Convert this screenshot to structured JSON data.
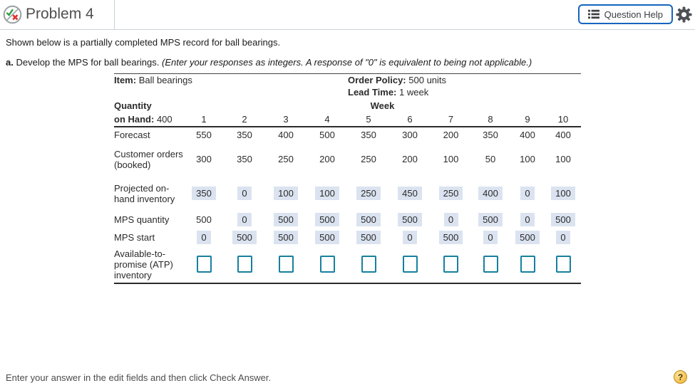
{
  "header": {
    "title": "Problem 4",
    "question_help_label": "Question Help"
  },
  "problem": {
    "intro": "Shown below is a partially completed MPS record for ball bearings.",
    "part_label": "a.",
    "part_text": "Develop the MPS for ball bearings.",
    "part_note": "(Enter your responses as integers. A response of \"0\" is equivalent to being not applicable.)"
  },
  "mps": {
    "item_label": "Item:",
    "item_value": "Ball bearings",
    "order_policy_label": "Order Policy:",
    "order_policy_value": "500 units",
    "lead_time_label": "Lead Time:",
    "lead_time_value": "1 week",
    "quantity_label_line1": "Quantity",
    "quantity_label_line2": "on Hand:",
    "quantity_value": "400",
    "week_header": "Week",
    "weeks": [
      "1",
      "2",
      "3",
      "4",
      "5",
      "6",
      "7",
      "8",
      "9",
      "10"
    ],
    "rows": [
      {
        "name": "forecast",
        "label": "Forecast",
        "values": [
          "550",
          "350",
          "400",
          "500",
          "350",
          "300",
          "200",
          "350",
          "400",
          "400"
        ],
        "shaded": [
          0,
          0,
          0,
          0,
          0,
          0,
          0,
          0,
          0,
          0
        ]
      },
      {
        "name": "customer-orders",
        "label": "Customer orders (booked)",
        "values": [
          "300",
          "350",
          "250",
          "200",
          "250",
          "200",
          "100",
          "50",
          "100",
          "100"
        ],
        "shaded": [
          0,
          0,
          0,
          0,
          0,
          0,
          0,
          0,
          0,
          0
        ]
      },
      {
        "name": "projected-on-hand",
        "label": "Projected on-hand inventory",
        "values": [
          "350",
          "0",
          "100",
          "100",
          "250",
          "450",
          "250",
          "400",
          "0",
          "100"
        ],
        "shaded": [
          1,
          1,
          1,
          1,
          1,
          1,
          1,
          1,
          1,
          1
        ]
      },
      {
        "name": "mps-quantity",
        "label": "MPS quantity",
        "values": [
          "500",
          "0",
          "500",
          "500",
          "500",
          "500",
          "0",
          "500",
          "0",
          "500"
        ],
        "shaded": [
          0,
          1,
          1,
          1,
          1,
          1,
          1,
          1,
          1,
          1
        ]
      },
      {
        "name": "mps-start",
        "label": "MPS start",
        "values": [
          "0",
          "500",
          "500",
          "500",
          "500",
          "0",
          "500",
          "0",
          "500",
          "0"
        ],
        "shaded": [
          1,
          1,
          1,
          1,
          1,
          1,
          1,
          1,
          1,
          1
        ]
      },
      {
        "name": "atp",
        "label": "Available-to-promise (ATP) inventory",
        "input": true,
        "values": [
          "",
          "",
          "",
          "",
          "",
          "",
          "",
          "",
          "",
          ""
        ]
      }
    ]
  },
  "footer": {
    "instruction": "Enter your answer in the edit fields and then click Check Answer.",
    "help_label": "?"
  },
  "colors": {
    "accent_blue": "#1565c0",
    "shaded_cell": "#dbe3f0",
    "input_border": "#17809e",
    "help_gold": "#efb22e"
  }
}
